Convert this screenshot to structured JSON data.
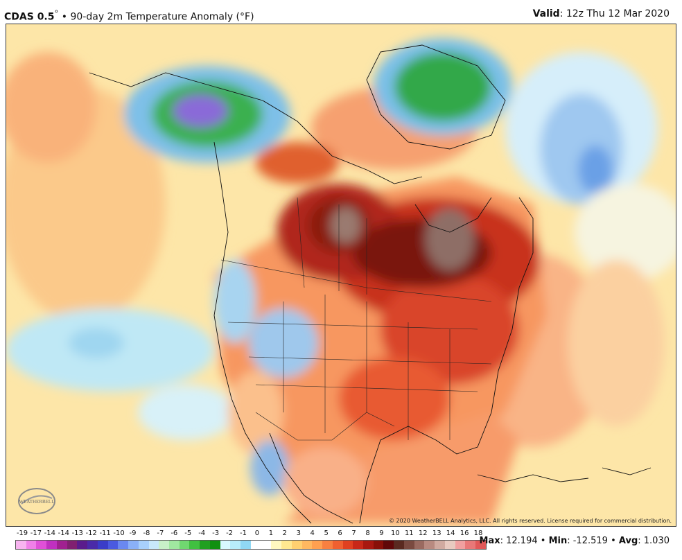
{
  "header": {
    "model": "CDAS 0.5",
    "degree": "°",
    "sep": "•",
    "title": "90-day 2m Temperature Anomaly (°F)",
    "valid_label": "Valid",
    "valid_text": ": 12z Thu 12 Mar 2020"
  },
  "copyright": "© 2020 WeatherBELL Analytics, LLC. All rights reserved. License required for commercial distribution.",
  "logo_text": "WEATHERBELL",
  "legend": {
    "ticks": [
      "-19",
      "-17",
      "-14",
      "-14",
      "-13",
      "-12",
      "-11",
      "-10",
      "-9",
      "-8",
      "-7",
      "-6",
      "-5",
      "-4",
      "-3",
      "-2",
      "-1",
      "0",
      "1",
      "2",
      "3",
      "4",
      "5",
      "6",
      "7",
      "8",
      "9",
      "10",
      "11",
      "12",
      "13",
      "14",
      "16",
      "18"
    ],
    "colors": [
      "#f8b4f0",
      "#f080e8",
      "#e050d8",
      "#c030c0",
      "#a02090",
      "#802070",
      "#5a1c8c",
      "#4a2aa8",
      "#3a3cc8",
      "#4a5ae0",
      "#6a88f0",
      "#8ab0f8",
      "#a8d0fc",
      "#c8e8fc",
      "#c8f0c8",
      "#a0e8a0",
      "#70d870",
      "#40c040",
      "#20a020",
      "#109010",
      "#d8f8ff",
      "#b8ecfa",
      "#90d8f4",
      "#ffffff",
      "#ffffff",
      "#fff8c0",
      "#ffe890",
      "#ffd070",
      "#ffb860",
      "#ffa050",
      "#f88040",
      "#f06030",
      "#e04020",
      "#c82818",
      "#a81810",
      "#881008",
      "#600808",
      "#5a2a20",
      "#7a4a40",
      "#9a6a60",
      "#b88a80",
      "#d0aaa0",
      "#e8cac0",
      "#f0a0a0",
      "#e87878",
      "#e05858"
    ]
  },
  "stats": {
    "max_label": "Max",
    "max_value": ": 12.194",
    "min_label": "Min",
    "min_value": ": -12.519",
    "avg_label": "Avg",
    "avg_value": ": 1.030",
    "sep": "•"
  }
}
